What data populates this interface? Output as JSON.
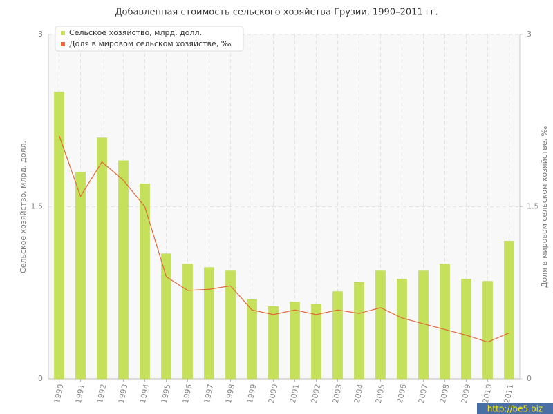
{
  "chart_data": {
    "type": "bar-line",
    "title": "Добавленная стоимость сельского хозяйства Грузии, 1990–2011 гг.",
    "y_label": "Сельское хозяйство, млрд. долл.",
    "y2_label": "Доля в мировом сельском хозяйстве, ‰",
    "categories": [
      "1990",
      "1991",
      "1992",
      "1993",
      "1994",
      "1995",
      "1996",
      "1997",
      "1998",
      "1999",
      "2000",
      "2001",
      "2002",
      "2003",
      "2004",
      "2005",
      "2006",
      "2007",
      "2008",
      "2009",
      "2010",
      "2011"
    ],
    "series": [
      {
        "name": "Сельское хозяйство, млрд. долл.",
        "type": "bar",
        "color": "#c5e05a",
        "values": [
          2.5,
          1.8,
          2.1,
          1.9,
          1.7,
          1.09,
          1.0,
          0.97,
          0.94,
          0.69,
          0.63,
          0.67,
          0.65,
          0.76,
          0.84,
          0.94,
          0.87,
          0.94,
          1.0,
          0.87,
          0.85,
          1.2
        ]
      },
      {
        "name": "Доля в мировом сельском хозяйстве, ‰",
        "type": "line",
        "axis": "y2",
        "color": "#e0683a",
        "values": [
          2.12,
          1.59,
          1.89,
          1.73,
          1.5,
          0.89,
          0.77,
          0.78,
          0.81,
          0.6,
          0.56,
          0.6,
          0.56,
          0.6,
          0.57,
          0.62,
          0.53,
          0.48,
          0.43,
          0.38,
          0.32,
          0.4
        ]
      }
    ],
    "ylim": [
      0,
      3
    ],
    "yticks": [
      0,
      1.5,
      3
    ],
    "y2lim": [
      0,
      3
    ],
    "y2ticks": [
      0,
      1.5,
      3
    ],
    "grid": true,
    "legend": "top-left",
    "watermark": "http://be5.biz"
  }
}
